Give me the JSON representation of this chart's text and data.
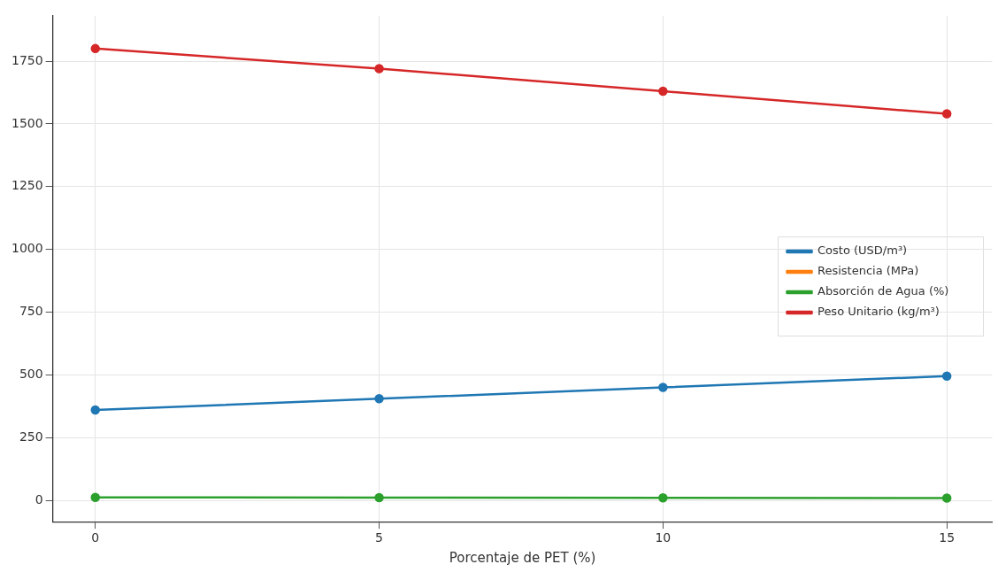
{
  "chart_data": {
    "type": "line",
    "xlabel": "Porcentaje de PET (%)",
    "x": [
      0,
      5,
      10,
      15
    ],
    "series": [
      {
        "name": "Costo (USD/m³)",
        "color": "#1f77b4",
        "values": [
          360,
          405,
          450,
          495
        ]
      },
      {
        "name": "Resistencia (MPa)",
        "color": "#ff7f0e",
        "values": [
          null,
          null,
          null,
          null
        ]
      },
      {
        "name": "Absorción de Agua (%)",
        "color": "#2ca02c",
        "values": [
          12,
          11,
          10,
          9
        ]
      },
      {
        "name": "Peso Unitario (kg/m³)",
        "color": "#d62728",
        "values": [
          1800,
          1720,
          1630,
          1540
        ]
      }
    ],
    "xlim": [
      -0.75,
      15.8
    ],
    "xticks": [
      0,
      5,
      10,
      15
    ],
    "ylim": [
      -85,
      1930
    ],
    "yticks": [
      0,
      250,
      500,
      750,
      1000,
      1250,
      1500,
      1750
    ],
    "grid": true,
    "legend": "right",
    "marker": "circle",
    "line_style": "solid"
  }
}
